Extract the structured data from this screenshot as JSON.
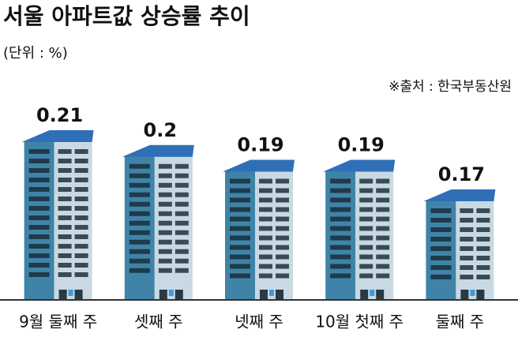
{
  "chart_data": {
    "type": "bar",
    "title": "서울 아파트값 상승률 추이",
    "subtitle": "(단위 : %)",
    "source": "※출처 : 한국부동산원",
    "categories": [
      "9월 둘째 주",
      "셋째 주",
      "넷째 주",
      "10월 첫째 주",
      "둘째 주"
    ],
    "values": [
      0.21,
      0.2,
      0.19,
      0.19,
      0.17
    ],
    "color": "#2f6fb8"
  }
}
